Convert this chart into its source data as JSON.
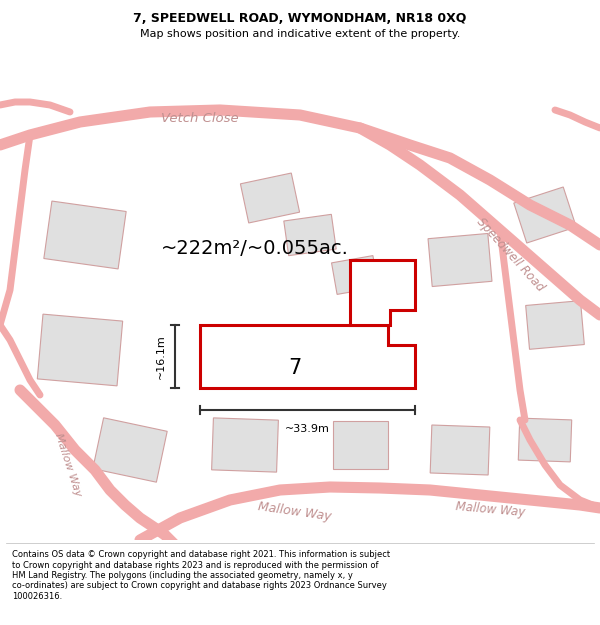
{
  "title": "7, SPEEDWELL ROAD, WYMONDHAM, NR18 0XQ",
  "subtitle": "Map shows position and indicative extent of the property.",
  "footer": "Contains OS data © Crown copyright and database right 2021. This information is subject\nto Crown copyright and database rights 2023 and is reproduced with the permission of\nHM Land Registry. The polygons (including the associated geometry, namely x, y\nco-ordinates) are subject to Crown copyright and database rights 2023 Ordnance Survey\n100026316.",
  "area_label": "~222m²/~0.055ac.",
  "width_label": "~33.9m",
  "height_label": "~16.1m",
  "property_number": "7",
  "background_color": "#ffffff",
  "road_color": "#f2aaaa",
  "building_fill": "#e0e0e0",
  "building_stroke": "#d0a0a0",
  "highlight_color": "#cc0000",
  "road_label_color": "#c09090",
  "dim_color": "#333333",
  "title_fontsize": 9,
  "subtitle_fontsize": 8,
  "footer_fontsize": 6
}
